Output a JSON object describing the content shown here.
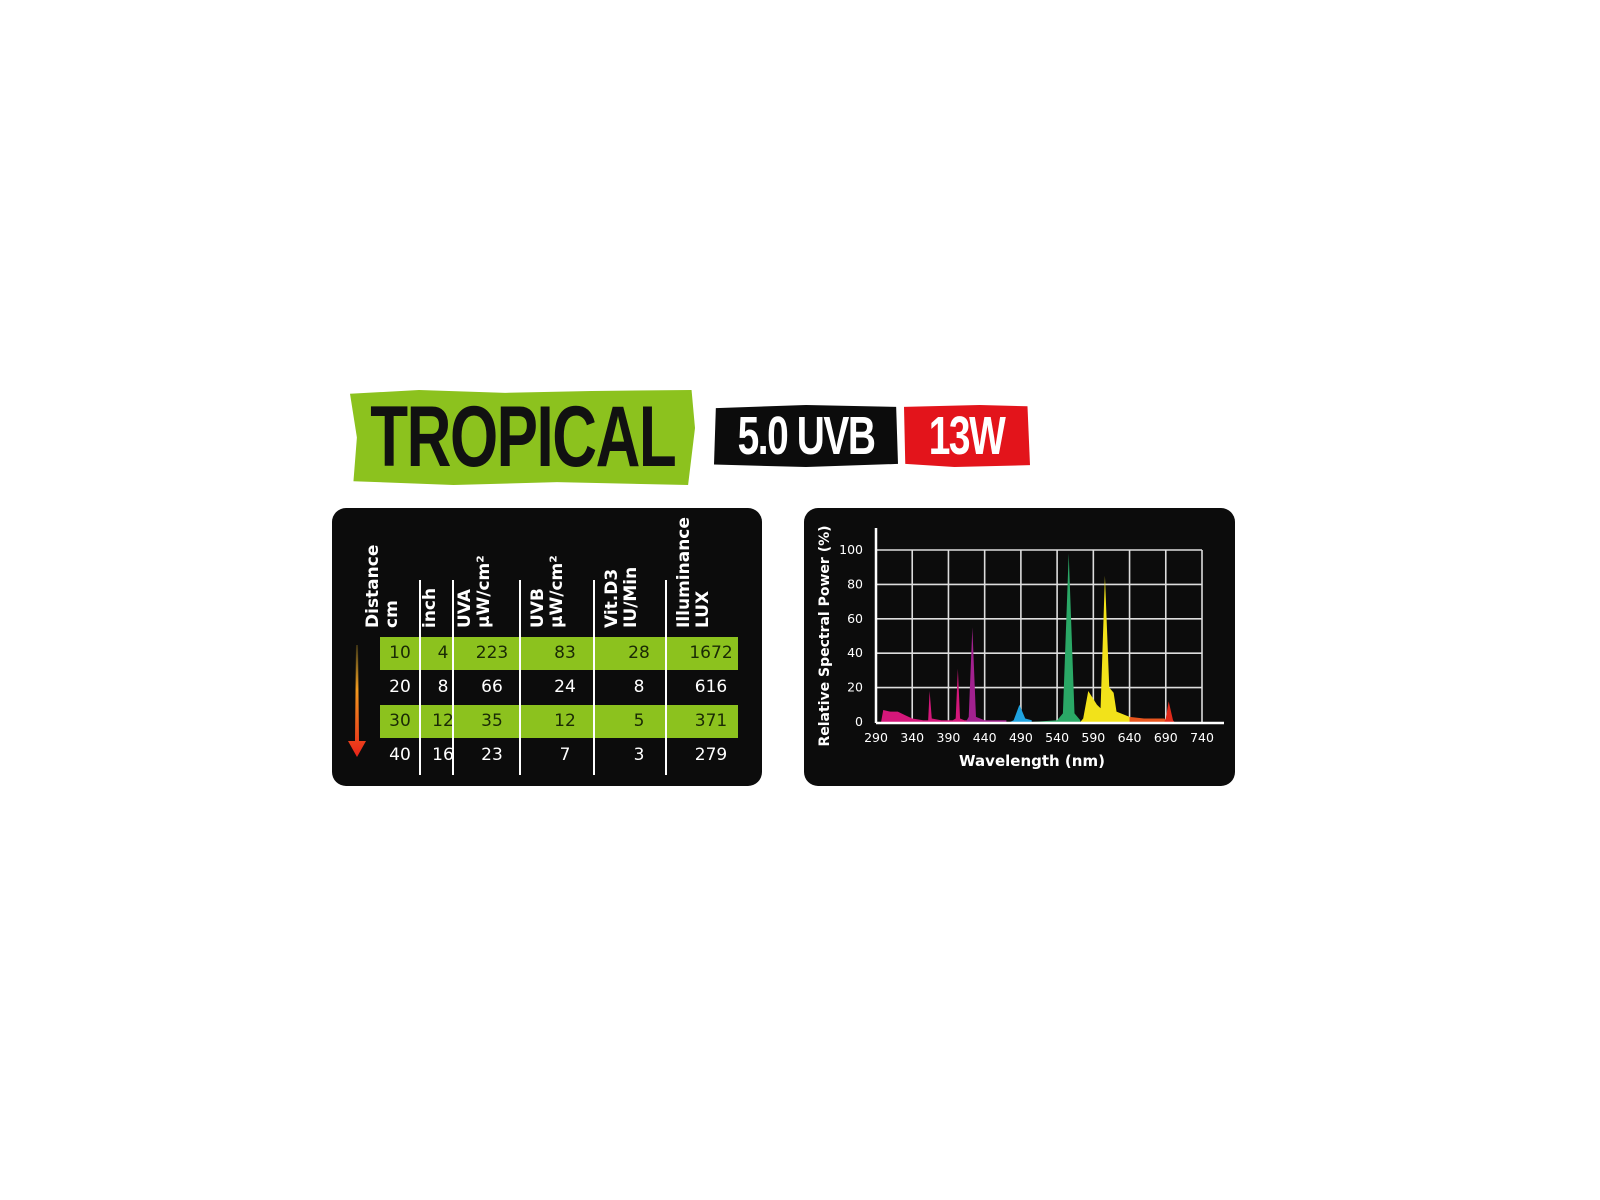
{
  "header": {
    "product": "TROPICAL",
    "uv_rating": "5.0 UVB",
    "wattage": "13W"
  },
  "colors": {
    "green": "#8cc21e",
    "red": "#e3141b",
    "panel": "#0c0c0c"
  },
  "table": {
    "columns": [
      {
        "line1": "Distance",
        "line2": "cm"
      },
      {
        "line1": "inch",
        "line2": ""
      },
      {
        "line1": "UVA",
        "line2": "μW/cm²"
      },
      {
        "line1": "UVB",
        "line2": "μW/cm²"
      },
      {
        "line1": "Vit.D3",
        "line2": "IU/Min"
      },
      {
        "line1": "Illuminance",
        "line2": "LUX"
      }
    ],
    "rows": [
      [
        "10",
        "4",
        "223",
        "83",
        "28",
        "1672"
      ],
      [
        "20",
        "8",
        "66",
        "24",
        "8",
        "616"
      ],
      [
        "30",
        "12",
        "35",
        "12",
        "5",
        "371"
      ],
      [
        "40",
        "16",
        "23",
        "7",
        "3",
        "279"
      ]
    ],
    "distance_arrow_icon": "arrow-down-gradient"
  },
  "chart_data": {
    "type": "area",
    "xlabel": "Wavelength (nm)",
    "ylabel": "Relative Spectral Power (%)",
    "xlim": [
      290,
      740
    ],
    "ylim": [
      0,
      100
    ],
    "xticks": [
      "290",
      "340",
      "390",
      "440",
      "490",
      "540",
      "590",
      "640",
      "690",
      "740"
    ],
    "yticks": [
      "0",
      "20",
      "40",
      "60",
      "80",
      "100"
    ],
    "grid": true,
    "series": [
      {
        "color": "#d4177a",
        "points": [
          [
            297,
            0
          ],
          [
            300,
            7
          ],
          [
            310,
            6
          ],
          [
            320,
            6
          ],
          [
            330,
            4
          ],
          [
            340,
            2
          ],
          [
            355,
            1
          ],
          [
            362,
            1
          ],
          [
            364,
            18
          ],
          [
            367,
            2
          ],
          [
            380,
            1
          ],
          [
            396,
            1
          ],
          [
            400,
            2
          ],
          [
            403,
            31
          ],
          [
            406,
            2
          ],
          [
            412,
            1
          ],
          [
            416,
            1
          ],
          [
            416,
            0
          ]
        ]
      },
      {
        "color": "#a2218f",
        "points": [
          [
            414,
            0
          ],
          [
            418,
            3
          ],
          [
            423,
            55
          ],
          [
            428,
            3
          ],
          [
            440,
            1
          ],
          [
            470,
            1
          ],
          [
            470,
            0
          ]
        ]
      },
      {
        "color": "#1fa3e0",
        "points": [
          [
            475,
            0
          ],
          [
            480,
            1
          ],
          [
            488,
            10
          ],
          [
            496,
            2
          ],
          [
            505,
            1
          ],
          [
            505,
            0
          ]
        ]
      },
      {
        "color": "#2aa866",
        "points": [
          [
            505,
            0
          ],
          [
            540,
            1
          ],
          [
            548,
            5
          ],
          [
            556,
            98
          ],
          [
            564,
            5
          ],
          [
            572,
            1
          ],
          [
            572,
            0
          ]
        ]
      },
      {
        "color": "#f2e21a",
        "points": [
          [
            572,
            0
          ],
          [
            576,
            2
          ],
          [
            583,
            18
          ],
          [
            595,
            10
          ],
          [
            600,
            8
          ],
          [
            606,
            85
          ],
          [
            612,
            20
          ],
          [
            618,
            17
          ],
          [
            622,
            6
          ],
          [
            640,
            3
          ],
          [
            640,
            0
          ]
        ]
      },
      {
        "color": "#e8561f",
        "points": [
          [
            640,
            0
          ],
          [
            640,
            3
          ],
          [
            660,
            2
          ],
          [
            688,
            2
          ],
          [
            690,
            1
          ],
          [
            690,
            0
          ]
        ]
      },
      {
        "color": "#e02a1a",
        "points": [
          [
            688,
            0
          ],
          [
            690,
            2
          ],
          [
            694,
            12
          ],
          [
            700,
            1
          ],
          [
            702,
            0
          ]
        ]
      }
    ]
  }
}
